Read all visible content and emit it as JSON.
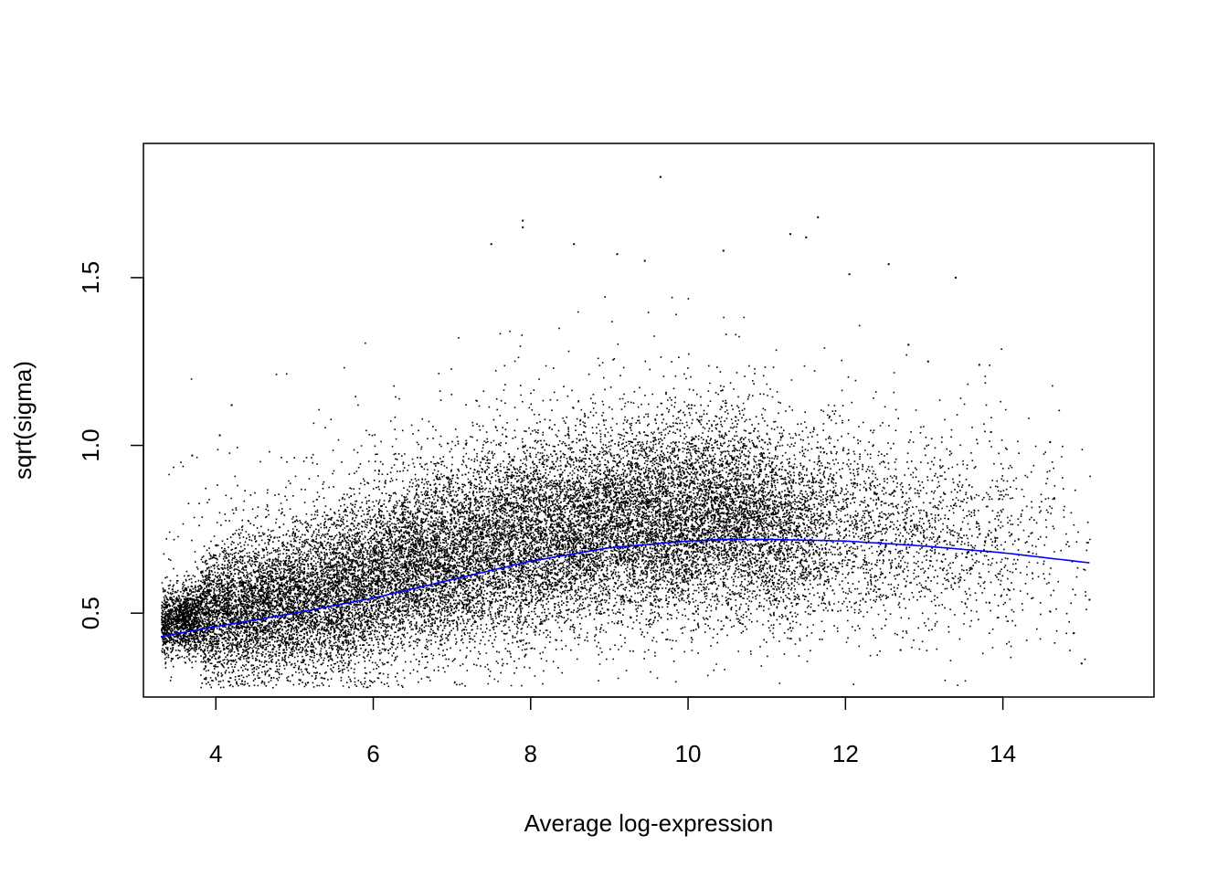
{
  "chart_data": {
    "type": "scatter",
    "title": "",
    "xlabel": "Average log-expression",
    "ylabel": "sqrt(sigma)",
    "xlim": [
      3.08,
      15.92
    ],
    "ylim": [
      0.25,
      1.9
    ],
    "x_ticks": [
      4,
      6,
      8,
      10,
      12,
      14
    ],
    "x_tick_labels": [
      "4",
      "6",
      "8",
      "10",
      "12",
      "14"
    ],
    "y_ticks": [
      0.5,
      1.0,
      1.5
    ],
    "y_tick_labels": [
      "0.5",
      "1.0",
      "1.5"
    ],
    "grid": false,
    "legend": "none",
    "point_color": "#000000",
    "trend_color": "#0000ff",
    "trend_line": {
      "name": "",
      "x": [
        3.3,
        4.0,
        5.0,
        6.0,
        7.0,
        8.0,
        9.0,
        10.0,
        10.5,
        11.0,
        12.0,
        13.0,
        14.0,
        15.1
      ],
      "y": [
        0.43,
        0.46,
        0.5,
        0.545,
        0.6,
        0.655,
        0.695,
        0.715,
        0.72,
        0.72,
        0.715,
        0.7,
        0.68,
        0.65
      ]
    },
    "scatter_points_note": "dense cloud of several tens of thousands of gene points following the trend; outliers listed explicitly",
    "outlier_points": {
      "x": [
        9.65,
        7.9,
        7.9,
        11.65,
        11.3,
        11.5,
        7.5,
        8.55,
        12.05,
        9.1,
        9.45,
        10.45,
        12.55,
        13.4,
        4.05,
        4.2,
        3.7,
        12.7,
        14.6,
        14.9,
        15.1,
        15.0,
        14.2,
        13.7,
        13.85,
        12.8,
        13.05
      ],
      "y": [
        1.8,
        1.67,
        1.65,
        1.68,
        1.63,
        1.62,
        1.6,
        1.6,
        1.51,
        1.57,
        1.55,
        1.58,
        1.54,
        1.5,
        1.03,
        1.12,
        0.97,
        0.39,
        1.01,
        0.44,
        0.54,
        0.35,
        0.72,
        1.24,
        1.04,
        1.3,
        1.25
      ]
    }
  }
}
